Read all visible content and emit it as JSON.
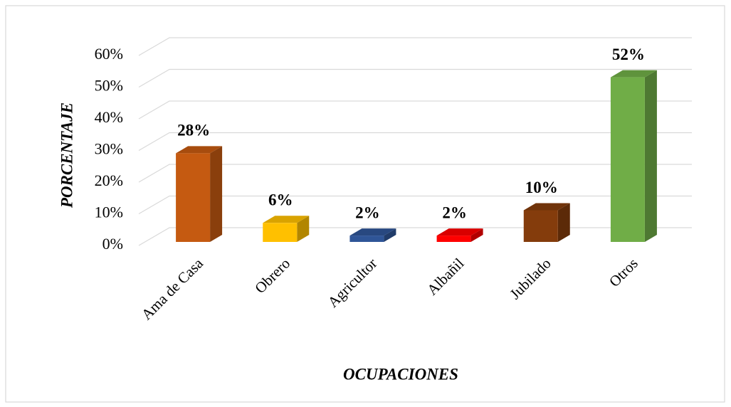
{
  "chart_data": {
    "type": "bar3d",
    "categories": [
      "Ama de Casa",
      "Obrero",
      "Agricultor",
      "Albañil",
      "Jubilado",
      "Otros"
    ],
    "values": [
      28,
      6,
      2,
      2,
      10,
      52
    ],
    "value_labels": [
      "28%",
      "6%",
      "2%",
      "2%",
      "10%",
      "52%"
    ],
    "colors": [
      "#c55a11",
      "#ffc000",
      "#2f5597",
      "#ff0000",
      "#843c0c",
      "#70ad47"
    ],
    "ylim": [
      0,
      60
    ],
    "yticks": [
      {
        "value": 0,
        "label": "0%"
      },
      {
        "value": 10,
        "label": "10%"
      },
      {
        "value": 20,
        "label": "20%"
      },
      {
        "value": 30,
        "label": "30%"
      },
      {
        "value": 40,
        "label": "40%"
      },
      {
        "value": 50,
        "label": "50%"
      },
      {
        "value": 60,
        "label": "60%"
      }
    ],
    "y_label": "PORCENTAJE",
    "x_label": "OCUPACIONES",
    "grid": true
  }
}
